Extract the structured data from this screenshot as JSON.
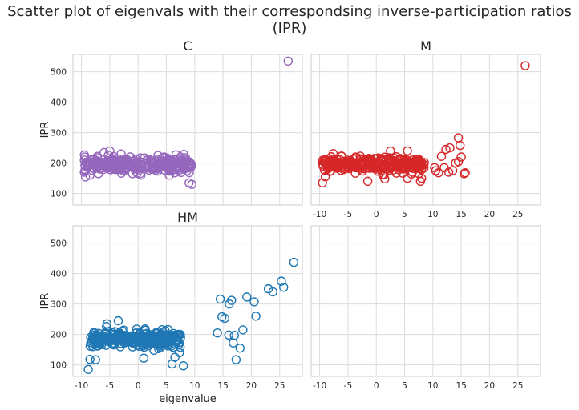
{
  "figure": {
    "suptitle": "Scatter plot of eigenvals with their correspondsing inverse-participation ratios (IPR)"
  },
  "chart_data": [
    {
      "type": "scatter",
      "title": "C",
      "xlabel": "",
      "ylabel": "IPR",
      "xlim": [
        -11.5,
        29
      ],
      "ylim": [
        62,
        557
      ],
      "xticks": [
        -10,
        -5,
        0,
        5,
        10,
        15,
        20,
        25
      ],
      "yticks": [
        100,
        200,
        300,
        400,
        500
      ],
      "show_xtick_labels": false,
      "show_ytick_labels": true,
      "grid": true,
      "color": "#9467bd",
      "marker": "open-circle",
      "bulk": {
        "x_range": [
          -9.5,
          9.5
        ],
        "y_center": 195,
        "y_spread": 18,
        "approx_count": 300
      },
      "points": [
        {
          "x": 26.5,
          "y": 535
        },
        {
          "x": 9.0,
          "y": 135
        },
        {
          "x": 9.5,
          "y": 130
        },
        {
          "x": -9.5,
          "y": 210
        },
        {
          "x": -9.5,
          "y": 170
        },
        {
          "x": -8.5,
          "y": 160
        },
        {
          "x": -6.0,
          "y": 235
        },
        {
          "x": -5.0,
          "y": 240
        },
        {
          "x": -3.0,
          "y": 230
        },
        {
          "x": -7.0,
          "y": 165
        },
        {
          "x": 0.5,
          "y": 160
        },
        {
          "x": 5.5,
          "y": 160
        },
        {
          "x": 3.5,
          "y": 225
        },
        {
          "x": 7.5,
          "y": 220
        },
        {
          "x": -1.0,
          "y": 165
        }
      ]
    },
    {
      "type": "scatter",
      "title": "M",
      "xlabel": "",
      "ylabel": "",
      "xlim": [
        -11.5,
        29
      ],
      "ylim": [
        62,
        557
      ],
      "xticks": [
        -10,
        -5,
        0,
        5,
        10,
        15,
        20,
        25
      ],
      "yticks": [
        100,
        200,
        300,
        400,
        500
      ],
      "show_xtick_labels": true,
      "show_ytick_labels": false,
      "grid": true,
      "color": "#d62728",
      "marker": "open-circle",
      "bulk": {
        "x_range": [
          -9.5,
          8.5
        ],
        "y_center": 195,
        "y_spread": 18,
        "approx_count": 300
      },
      "points": [
        {
          "x": 26.3,
          "y": 520
        },
        {
          "x": 14.5,
          "y": 283
        },
        {
          "x": 13.0,
          "y": 250
        },
        {
          "x": 12.3,
          "y": 245
        },
        {
          "x": 14.8,
          "y": 258
        },
        {
          "x": 11.5,
          "y": 222
        },
        {
          "x": 15.0,
          "y": 220
        },
        {
          "x": 12.0,
          "y": 185
        },
        {
          "x": 14.0,
          "y": 200
        },
        {
          "x": 14.5,
          "y": 205
        },
        {
          "x": 10.5,
          "y": 175
        },
        {
          "x": 11.0,
          "y": 168
        },
        {
          "x": 13.5,
          "y": 175
        },
        {
          "x": 15.5,
          "y": 165
        },
        {
          "x": 15.7,
          "y": 168
        },
        {
          "x": 12.8,
          "y": 170
        },
        {
          "x": 10.3,
          "y": 185
        },
        {
          "x": -9.5,
          "y": 135
        },
        {
          "x": -9.0,
          "y": 155
        },
        {
          "x": -1.5,
          "y": 140
        },
        {
          "x": 1.5,
          "y": 148
        },
        {
          "x": 5.5,
          "y": 150
        },
        {
          "x": 7.8,
          "y": 140
        },
        {
          "x": 2.5,
          "y": 240
        },
        {
          "x": 5.5,
          "y": 240
        },
        {
          "x": 8.0,
          "y": 150
        }
      ]
    },
    {
      "type": "scatter",
      "title": "HM",
      "xlabel": "eigenvalue",
      "ylabel": "IPR",
      "xlim": [
        -11.5,
        29
      ],
      "ylim": [
        62,
        557
      ],
      "xticks": [
        -10,
        -5,
        0,
        5,
        10,
        15,
        20,
        25
      ],
      "yticks": [
        100,
        200,
        300,
        400,
        500
      ],
      "show_xtick_labels": true,
      "show_ytick_labels": true,
      "grid": true,
      "color": "#1f77b4",
      "marker": "open-circle",
      "bulk": {
        "x_range": [
          -8.5,
          7.5
        ],
        "y_center": 185,
        "y_spread": 20,
        "approx_count": 300
      },
      "points": [
        {
          "x": 27.5,
          "y": 437
        },
        {
          "x": 25.3,
          "y": 375
        },
        {
          "x": 25.7,
          "y": 355
        },
        {
          "x": 23.0,
          "y": 350
        },
        {
          "x": 23.8,
          "y": 340
        },
        {
          "x": 19.2,
          "y": 323
        },
        {
          "x": 14.5,
          "y": 316
        },
        {
          "x": 16.1,
          "y": 300
        },
        {
          "x": 16.5,
          "y": 312
        },
        {
          "x": 20.5,
          "y": 307
        },
        {
          "x": 14.8,
          "y": 258
        },
        {
          "x": 15.3,
          "y": 253
        },
        {
          "x": 20.8,
          "y": 260
        },
        {
          "x": 18.5,
          "y": 215
        },
        {
          "x": 14.0,
          "y": 205
        },
        {
          "x": 16.0,
          "y": 198
        },
        {
          "x": 17.0,
          "y": 197
        },
        {
          "x": 16.8,
          "y": 172
        },
        {
          "x": 18.0,
          "y": 155
        },
        {
          "x": 17.3,
          "y": 117
        },
        {
          "x": 8.0,
          "y": 97
        },
        {
          "x": 6.0,
          "y": 103
        },
        {
          "x": 1.0,
          "y": 122
        },
        {
          "x": -8.8,
          "y": 85
        },
        {
          "x": -8.5,
          "y": 118
        },
        {
          "x": -7.5,
          "y": 117
        },
        {
          "x": -8.0,
          "y": 160
        },
        {
          "x": -3.5,
          "y": 245
        },
        {
          "x": -5.5,
          "y": 235
        },
        {
          "x": 7.5,
          "y": 190
        },
        {
          "x": 7.3,
          "y": 140
        },
        {
          "x": 6.5,
          "y": 125
        }
      ]
    },
    {
      "type": "scatter",
      "title": "",
      "xlabel": "",
      "ylabel": "",
      "xlim": [
        -11.5,
        29
      ],
      "ylim": [
        62,
        557
      ],
      "xticks": [
        -10,
        -5,
        0,
        5,
        10,
        15,
        20,
        25
      ],
      "yticks": [
        100,
        200,
        300,
        400,
        500
      ],
      "show_xtick_labels": true,
      "show_ytick_labels": false,
      "grid": true,
      "points": []
    }
  ]
}
